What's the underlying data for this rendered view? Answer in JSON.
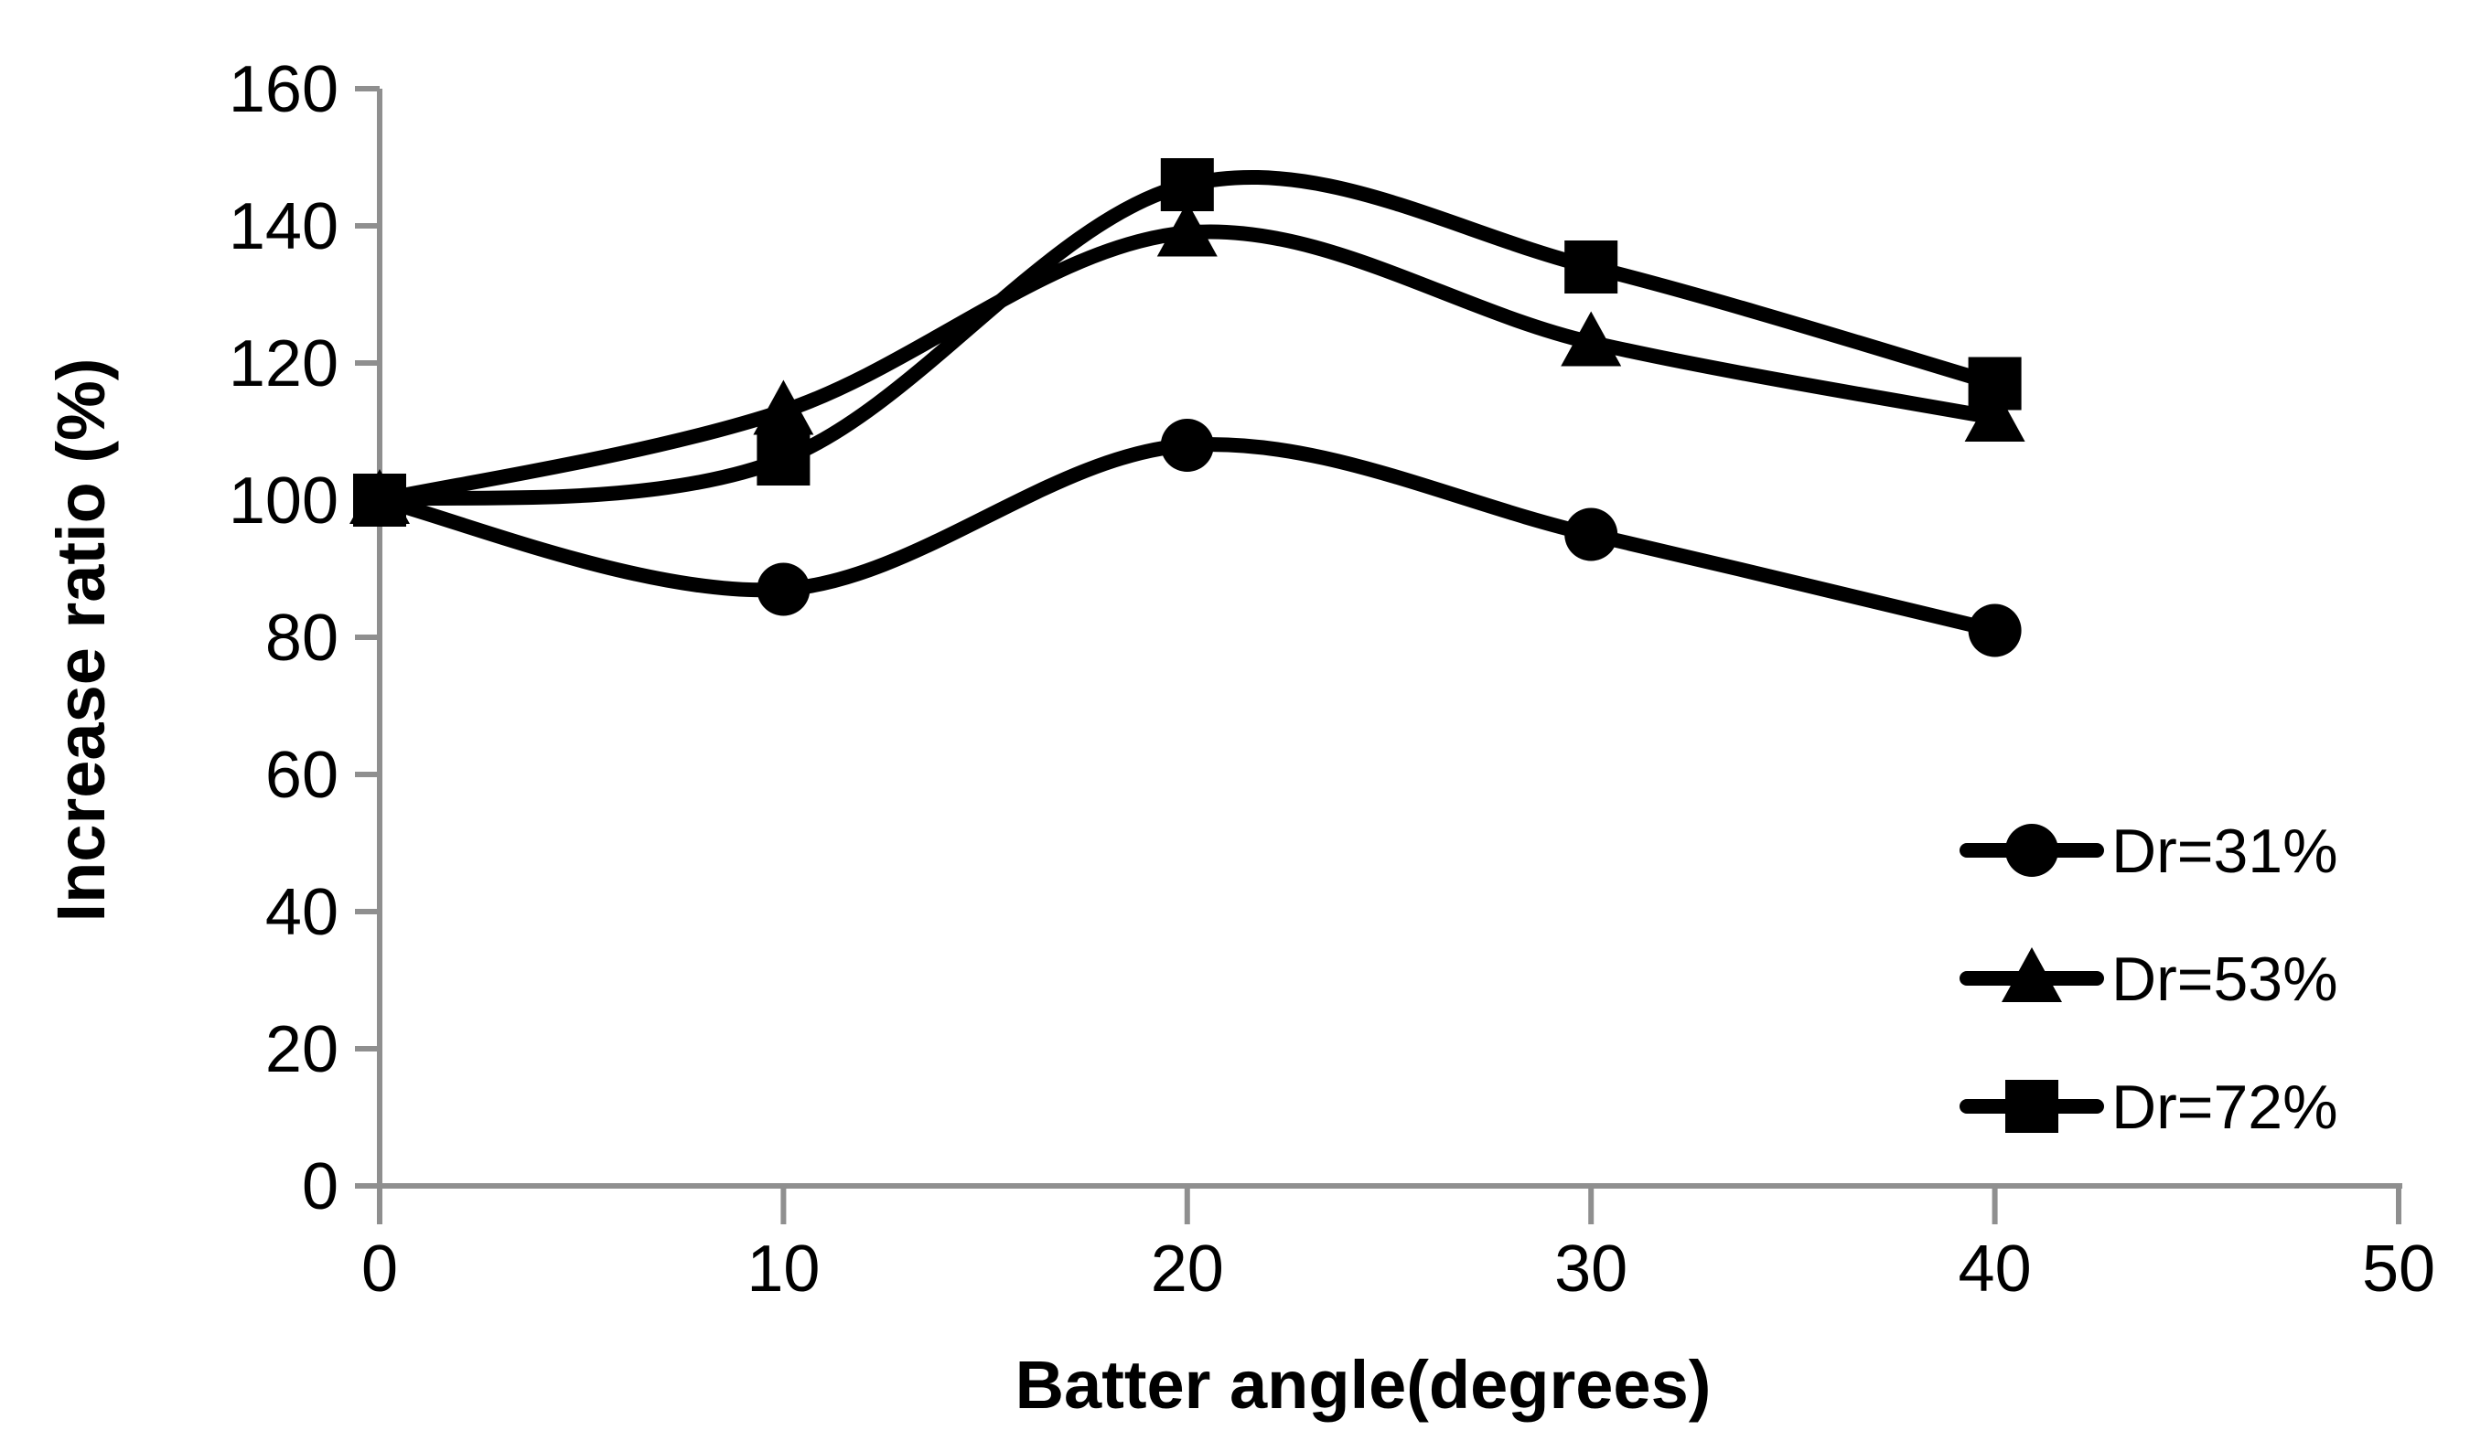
{
  "chart_data": {
    "type": "line",
    "title": "",
    "x": [
      0,
      10,
      20,
      30,
      40
    ],
    "series": [
      {
        "name": "Dr=31%",
        "marker": "circle",
        "values": [
          100,
          87,
          108,
          95,
          81
        ]
      },
      {
        "name": "Dr=53%",
        "marker": "triangle",
        "values": [
          100,
          113,
          139,
          123,
          112
        ]
      },
      {
        "name": "Dr=72%",
        "marker": "square",
        "values": [
          100,
          106,
          146,
          134,
          117
        ]
      }
    ],
    "xlabel": "Batter angle(degrees)",
    "ylabel": "Increase ratio (%)",
    "xlim": [
      0,
      50
    ],
    "ylim": [
      0,
      160
    ],
    "x_ticks": [
      0,
      10,
      20,
      30,
      40,
      50
    ],
    "y_ticks": [
      0,
      20,
      40,
      60,
      80,
      100,
      120,
      140,
      160
    ],
    "grid": false,
    "smooth": true,
    "legend_position": "lower right",
    "line_color": "#000000",
    "axis_color": "#8f8f8f",
    "background_color": "#ffffff"
  }
}
